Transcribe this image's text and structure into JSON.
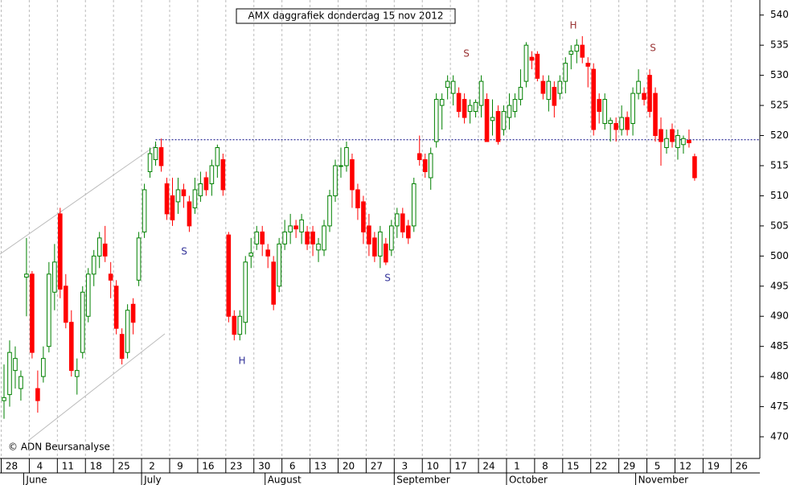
{
  "chart_data": {
    "type": "candlestick",
    "title": "AMX daggrafiek donderdag 15 nov 2012",
    "credit": "© ADN Beursanalyse",
    "up_color": "#008000",
    "down_color": "#ff0000",
    "reference_line": 519.3,
    "reference_color": "#000080",
    "annotations": [
      {
        "text": "S",
        "color": "#333399"
      },
      {
        "text": "H",
        "color": "#333399"
      },
      {
        "text": "S",
        "color": "#333399"
      },
      {
        "text": "S",
        "color": "#993333"
      },
      {
        "text": "H",
        "color": "#993333"
      },
      {
        "text": "S",
        "color": "#993333"
      }
    ],
    "ylim": [
      466.4,
      542.5
    ],
    "yticks": [
      470,
      475,
      480,
      485,
      490,
      495,
      500,
      505,
      510,
      515,
      520,
      525,
      530,
      535,
      540
    ],
    "grid": true,
    "categories": [
      "28",
      null,
      null,
      null,
      null,
      "4",
      null,
      null,
      null,
      null,
      "11",
      null,
      null,
      null,
      null,
      "18",
      null,
      null,
      null,
      null,
      "25",
      null,
      null,
      null,
      null,
      "2",
      null,
      null,
      null,
      null,
      "9",
      null,
      null,
      null,
      null,
      "16",
      null,
      null,
      null,
      null,
      "23",
      null,
      null,
      null,
      null,
      "30",
      null,
      null,
      null,
      null,
      "6",
      null,
      null,
      null,
      null,
      "13",
      null,
      null,
      null,
      null,
      "20",
      null,
      null,
      null,
      null,
      "27",
      null,
      null,
      null,
      null,
      "3",
      null,
      null,
      null,
      null,
      "10",
      null,
      null,
      null,
      null,
      "17",
      null,
      null,
      null,
      null,
      "24",
      null,
      null,
      null,
      null,
      "1",
      null,
      null,
      null,
      null,
      "8",
      null,
      null,
      null,
      null,
      "15",
      null,
      null,
      null,
      null,
      "22",
      null,
      null,
      null,
      null,
      "29",
      null,
      null,
      null,
      null,
      "5",
      null,
      null,
      null,
      null,
      "12",
      null,
      null,
      null,
      null,
      "19",
      null,
      null,
      null,
      null,
      "26",
      null,
      null,
      null,
      null
    ],
    "months": [
      null,
      null,
      null,
      null,
      "June",
      null,
      null,
      null,
      null,
      null,
      null,
      null,
      null,
      null,
      null,
      null,
      null,
      null,
      null,
      null,
      null,
      null,
      null,
      null,
      null,
      "July",
      null,
      null,
      null,
      null,
      null,
      null,
      null,
      null,
      null,
      null,
      null,
      null,
      null,
      null,
      null,
      null,
      null,
      null,
      null,
      null,
      null,
      "August",
      null,
      null,
      null,
      null,
      null,
      null,
      null,
      null,
      null,
      null,
      null,
      null,
      null,
      null,
      null,
      null,
      null,
      null,
      null,
      null,
      null,
      null,
      "September",
      null,
      null,
      null,
      null,
      null,
      null,
      null,
      null,
      null,
      null,
      null,
      null,
      null,
      null,
      null,
      null,
      null,
      null,
      null,
      "October",
      null,
      null,
      null,
      null,
      null,
      null,
      null,
      null,
      null,
      null,
      null,
      null,
      null,
      null,
      null,
      null,
      null,
      null,
      null,
      null,
      null,
      null,
      "November",
      null,
      null,
      null,
      null,
      null,
      null,
      null,
      null,
      null,
      null,
      null,
      null,
      null,
      null,
      null,
      null,
      null,
      null,
      null,
      null,
      null
    ],
    "open": [
      476,
      477,
      481,
      478,
      496.5,
      497,
      478,
      480,
      485,
      494,
      507,
      495,
      489,
      480,
      484,
      490,
      497,
      500,
      502,
      497,
      495,
      487,
      484,
      492,
      496,
      504,
      514,
      516,
      518,
      512,
      510,
      509,
      511,
      509,
      508,
      510,
      513,
      512,
      515,
      516,
      503.5,
      490,
      487,
      489,
      500,
      502,
      504,
      501,
      499,
      495,
      502,
      504,
      505,
      504,
      504,
      504,
      501,
      501,
      505,
      510,
      515,
      515,
      516,
      511,
      509,
      505,
      503,
      500,
      502,
      501,
      505,
      507,
      505,
      505,
      517,
      516,
      513,
      519,
      525,
      528,
      527,
      527,
      526,
      524,
      524,
      525,
      526,
      522.5,
      524,
      521,
      523,
      524,
      526,
      529,
      533,
      533.5,
      529,
      526,
      528,
      527,
      529,
      533.5,
      534,
      535,
      532,
      531,
      526,
      522,
      522,
      522,
      521,
      523,
      522,
      527,
      527,
      530,
      527,
      521,
      518,
      521,
      518,
      518.5,
      519.2,
      516.5,
      null,
      null,
      null,
      null,
      null,
      null,
      null,
      null,
      null,
      null,
      null
    ],
    "high": [
      482,
      486,
      485,
      481,
      503,
      497.5,
      481,
      485,
      499,
      502,
      508,
      497,
      491,
      483,
      495,
      498,
      501,
      504,
      505,
      499,
      496,
      488,
      492,
      493,
      504,
      512,
      518,
      519,
      519.5,
      513,
      513,
      513,
      512,
      510,
      513,
      514,
      514,
      516,
      518.5,
      517,
      504,
      491,
      491,
      500,
      503,
      505,
      505,
      502,
      500,
      503,
      506,
      507,
      506,
      507,
      505,
      505,
      503,
      506,
      511,
      516,
      518,
      519,
      517,
      512,
      510,
      507,
      504,
      505,
      503,
      506,
      508,
      508,
      506,
      513,
      520,
      517,
      518,
      527,
      527,
      530,
      530,
      528,
      527,
      526,
      526,
      530,
      527,
      526,
      525,
      525,
      527,
      527,
      531,
      535.5,
      534,
      534,
      530,
      530,
      529,
      530,
      533,
      535,
      536,
      536.5,
      533,
      532,
      527,
      527,
      523,
      523,
      525,
      524,
      528,
      531,
      528,
      531,
      528,
      523,
      521,
      522,
      521,
      520,
      521,
      517,
      null,
      null,
      null,
      null,
      null,
      null,
      null,
      null,
      null,
      null,
      null
    ],
    "low": [
      473,
      475,
      478,
      476,
      490,
      483,
      474,
      479,
      484,
      491,
      493,
      488,
      480,
      477,
      483,
      489,
      495,
      498,
      499,
      493,
      487,
      482,
      483,
      487,
      495,
      503,
      513,
      515,
      514,
      506,
      505,
      507,
      508,
      504,
      507,
      509,
      510,
      510,
      513,
      510,
      489,
      486,
      486,
      487,
      498,
      501,
      500,
      498,
      491,
      494,
      501,
      502,
      503,
      502,
      501,
      500,
      499,
      500,
      504,
      509,
      513,
      514,
      508,
      506,
      502,
      500,
      499,
      498,
      498.5,
      500,
      503,
      503,
      502,
      504,
      515,
      513,
      511,
      518,
      521,
      526,
      525,
      523,
      522,
      522,
      523,
      523,
      519,
      520,
      518.5,
      520,
      521,
      523,
      525,
      528,
      531,
      529,
      526,
      524,
      523,
      526,
      527,
      531,
      532,
      532,
      528,
      520,
      522,
      521,
      519,
      519,
      520,
      520,
      520,
      526,
      525,
      523,
      519,
      515,
      517,
      518,
      516,
      517,
      518,
      512.5,
      null,
      null,
      null,
      null,
      null,
      null,
      null,
      null,
      null,
      null,
      null
    ],
    "close": [
      476.5,
      484,
      483,
      480,
      497,
      484,
      476,
      483,
      497,
      499,
      494.5,
      489,
      481,
      481,
      494,
      497,
      500,
      503,
      500,
      496,
      488,
      483,
      491,
      489,
      503,
      511,
      517,
      518,
      515,
      507,
      506,
      511,
      510,
      505,
      511,
      512,
      511,
      515,
      518,
      511,
      490,
      487,
      490,
      499,
      500.5,
      504,
      502,
      500,
      492,
      502,
      504,
      505,
      504.5,
      506,
      502,
      502,
      502,
      505,
      510,
      515,
      515,
      518,
      511,
      508,
      504,
      502,
      500,
      504,
      499,
      505,
      507,
      504,
      503,
      512,
      516,
      514,
      517,
      526,
      526,
      529,
      529,
      524,
      523,
      525,
      525.5,
      529,
      519,
      523,
      519,
      524,
      525,
      526,
      528,
      535,
      532.5,
      529.5,
      527,
      529,
      525,
      529,
      532,
      534,
      535,
      533,
      531.5,
      521,
      524,
      526,
      522.5,
      521,
      523,
      521,
      527,
      529,
      526,
      524,
      520,
      519,
      519.5,
      519,
      520,
      519.5,
      518.8,
      513,
      null,
      null,
      null,
      null,
      null,
      null,
      null,
      null,
      null,
      null,
      null
    ]
  }
}
